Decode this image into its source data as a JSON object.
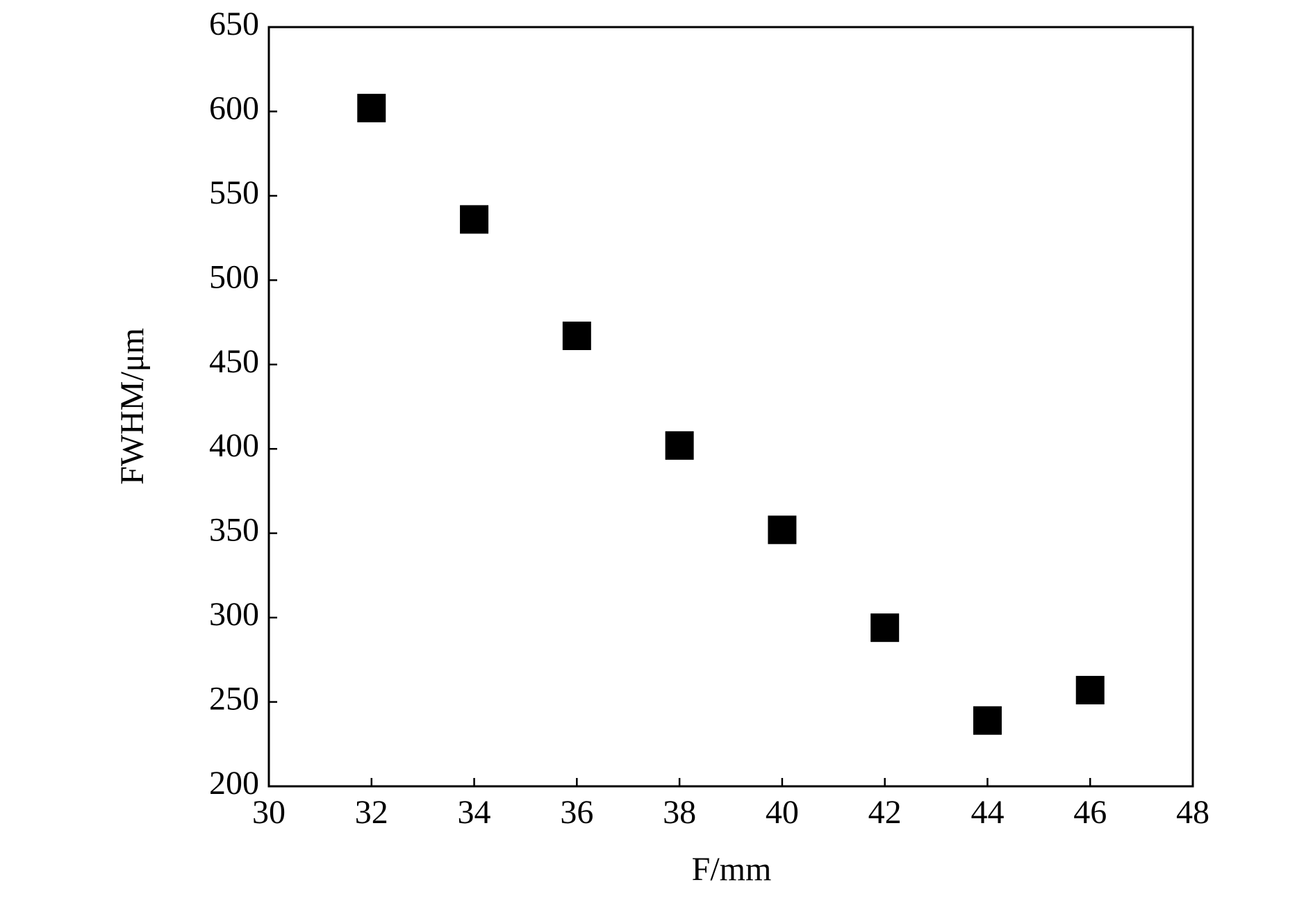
{
  "chart_data": {
    "type": "scatter",
    "xlabel": "F/mm",
    "ylabel": "FWHM/μm",
    "x": [
      32,
      34,
      36,
      38,
      40,
      42,
      44,
      46
    ],
    "values": [
      602,
      536,
      467,
      402,
      352,
      294,
      239,
      257
    ],
    "color": "#000000",
    "marker": "square",
    "xlim": [
      30,
      48
    ],
    "xticks": [
      30,
      32,
      34,
      36,
      38,
      40,
      42,
      44,
      46,
      48
    ],
    "ylim": [
      200,
      650
    ],
    "yticks": [
      200,
      250,
      300,
      350,
      400,
      450,
      500,
      550,
      600,
      650
    ],
    "grid": false
  }
}
